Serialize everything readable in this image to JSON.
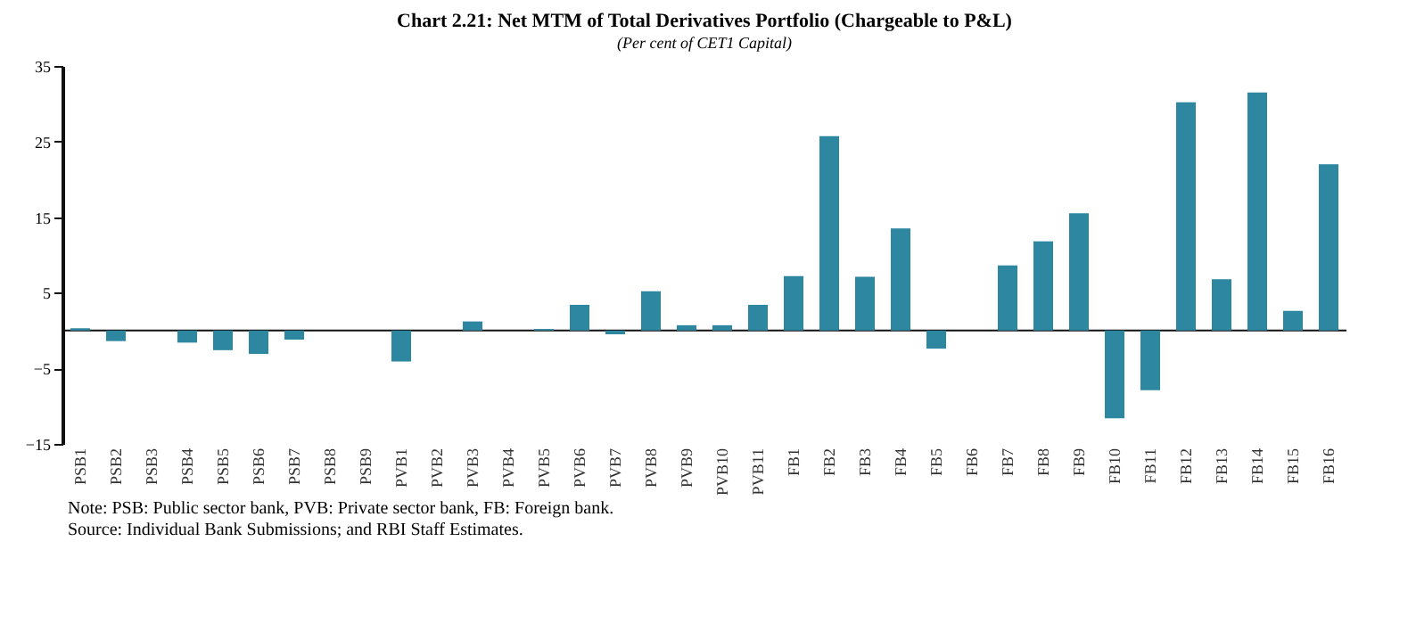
{
  "chart_data": {
    "type": "bar",
    "title": "Chart 2.21: Net MTM of Total Derivatives Portfolio (Chargeable to P&L)",
    "subtitle": "(Per cent of CET1 Capital)",
    "categories": [
      "PSB1",
      "PSB2",
      "PSB3",
      "PSB4",
      "PSB5",
      "PSB6",
      "PSB7",
      "PSB8",
      "PSB9",
      "PVB1",
      "PVB2",
      "PVB3",
      "PVB4",
      "PVB5",
      "PVB6",
      "PVB7",
      "PVB8",
      "PVB9",
      "PVB10",
      "PVB11",
      "FB1",
      "FB2",
      "FB3",
      "FB4",
      "FB5",
      "FB6",
      "FB7",
      "FB8",
      "FB9",
      "FB10",
      "FB11",
      "FB12",
      "FB13",
      "FB14",
      "FB15",
      "FB16"
    ],
    "values": [
      0.3,
      -1.4,
      0,
      -1.6,
      -2.6,
      -3.1,
      -1.2,
      0,
      0,
      -4.1,
      0,
      1.2,
      0,
      0.2,
      3.4,
      -0.5,
      5.2,
      0.7,
      0.7,
      3.4,
      7.2,
      25.7,
      7.1,
      13.5,
      -2.4,
      0,
      8.6,
      11.8,
      15.5,
      -11.6,
      -7.9,
      30.2,
      6.8,
      31.5,
      2.6,
      22
    ],
    "color": "#2e87a0",
    "ylim": [
      -15,
      35
    ],
    "yticks": [
      -15,
      -5,
      5,
      15,
      25,
      35
    ],
    "grid": false,
    "annotations": [
      "Note: PSB: Public sector bank, PVB: Private sector bank, FB: Foreign bank.",
      "Source: Individual Bank Submissions; and RBI Staff Estimates."
    ]
  }
}
